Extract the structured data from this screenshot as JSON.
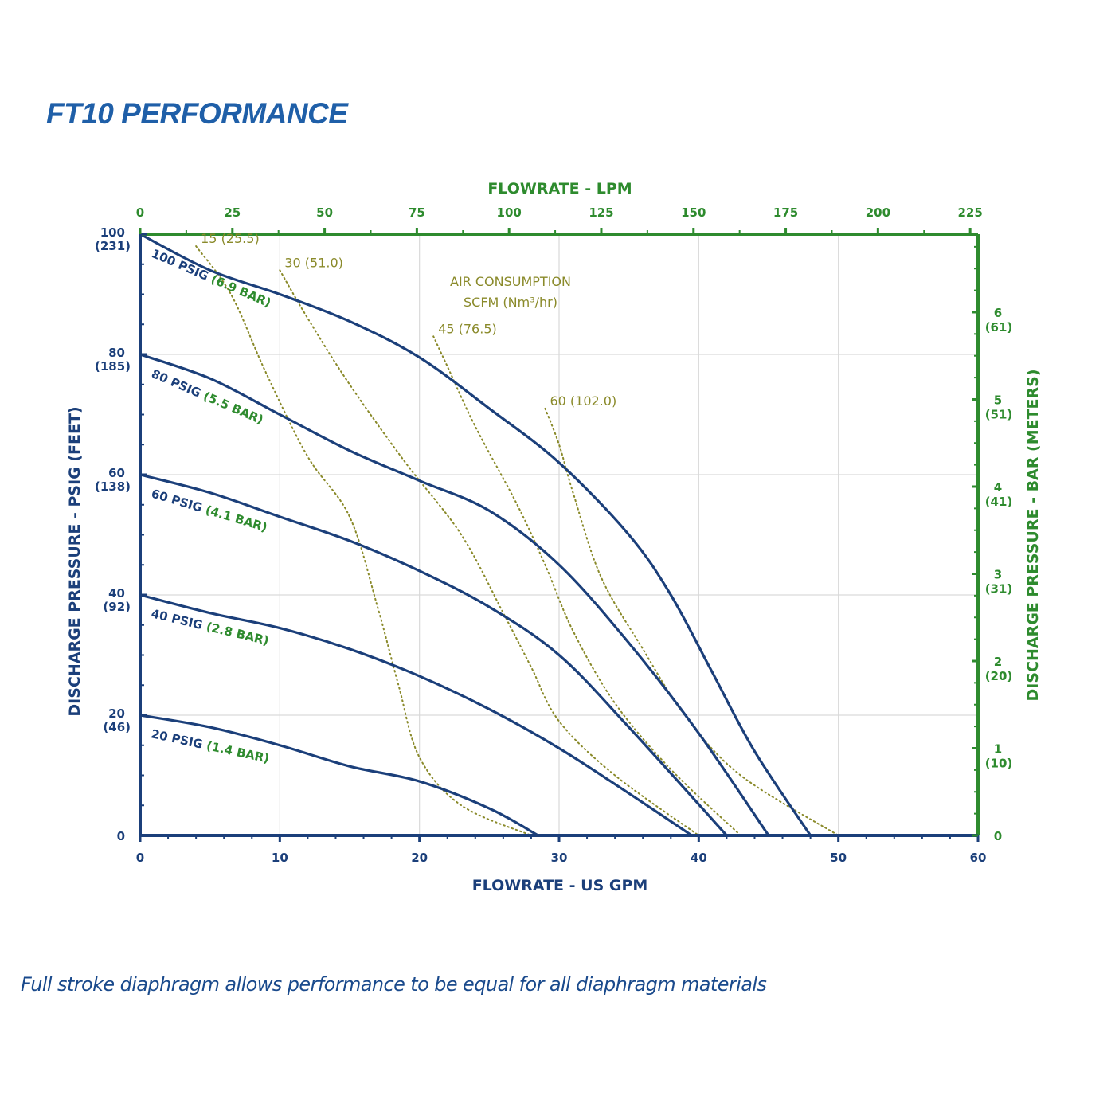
{
  "title": "FT10 PERFORMANCE",
  "footnote": "Full stroke diaphragm allows performance to be equal for all diaphragm materials",
  "colors": {
    "primary_axis": "#1b3f7a",
    "secondary_axis": "#2e8b2e",
    "curve": "#1b3f7a",
    "air_curve": "#8a8a2a",
    "grid": "#d9d9d9",
    "title": "#1f5fa8"
  },
  "chart_data": {
    "type": "line",
    "xlabel": "FLOWRATE - US GPM",
    "xlabel_top": "FLOWRATE - LPM",
    "ylabel": "DISCHARGE PRESSURE - PSIG (FEET)",
    "ylabel_right": "DISCHARGE PRESSURE - BAR (METERS)",
    "xlim": [
      0,
      60
    ],
    "ylim": [
      0,
      100
    ],
    "grid": true,
    "x_ticks": [
      "0",
      "10",
      "20",
      "30",
      "40",
      "50",
      "60"
    ],
    "x_tick_values": [
      0,
      10,
      20,
      30,
      40,
      50,
      60
    ],
    "x_top_ticks": [
      "0",
      "25",
      "50",
      "75",
      "100",
      "125",
      "150",
      "175",
      "200",
      "225"
    ],
    "x_top_tick_values": [
      0,
      25,
      50,
      75,
      100,
      125,
      150,
      175,
      200,
      225
    ],
    "y_ticks": [
      {
        "value": 0,
        "label": "0",
        "sub": ""
      },
      {
        "value": 20,
        "label": "20",
        "sub": "(46)"
      },
      {
        "value": 40,
        "label": "40",
        "sub": "(92)"
      },
      {
        "value": 60,
        "label": "60",
        "sub": "(138)"
      },
      {
        "value": 80,
        "label": "80",
        "sub": "(185)"
      },
      {
        "value": 100,
        "label": "100",
        "sub": "(231)"
      }
    ],
    "y_right_ticks": [
      {
        "value": 0,
        "label": "0",
        "sub": ""
      },
      {
        "value": 1,
        "label": "1",
        "sub": "(10)"
      },
      {
        "value": 2,
        "label": "2",
        "sub": "(20)"
      },
      {
        "value": 3,
        "label": "3",
        "sub": "(31)"
      },
      {
        "value": 4,
        "label": "4",
        "sub": "(41)"
      },
      {
        "value": 5,
        "label": "5",
        "sub": "(51)"
      },
      {
        "value": 6,
        "label": "6",
        "sub": "(61)"
      }
    ],
    "series": [
      {
        "name": "100 PSIG",
        "name_metric": "(6.9 BAR)",
        "x": [
          0,
          5,
          10,
          15,
          20,
          25,
          30,
          35,
          38,
          41,
          44,
          48
        ],
        "y": [
          100,
          94,
          90,
          85.5,
          79.5,
          71,
          62,
          50,
          40,
          27,
          14,
          0
        ]
      },
      {
        "name": "80 PSIG",
        "name_metric": "(5.5 BAR)",
        "x": [
          0,
          5,
          10,
          15,
          20,
          25,
          30,
          35,
          40,
          45
        ],
        "y": [
          80,
          76,
          70,
          64,
          59,
          54,
          45,
          32,
          17,
          0
        ]
      },
      {
        "name": "60 PSIG",
        "name_metric": "(4.1 BAR)",
        "x": [
          0,
          5,
          10,
          15,
          20,
          25,
          30,
          35,
          42
        ],
        "y": [
          60,
          57,
          53,
          49,
          44,
          38,
          30,
          18,
          0
        ]
      },
      {
        "name": "40 PSIG",
        "name_metric": "(2.8 BAR)",
        "x": [
          0,
          5,
          10,
          15,
          20,
          25,
          30,
          35,
          39.5
        ],
        "y": [
          40,
          37,
          34.5,
          31,
          26.5,
          21,
          14.5,
          7,
          0
        ]
      },
      {
        "name": "20 PSIG",
        "name_metric": "(1.4 BAR)",
        "x": [
          0,
          5,
          10,
          15,
          20,
          25,
          28.5
        ],
        "y": [
          20,
          18,
          15,
          11.5,
          9,
          4.5,
          0
        ]
      }
    ],
    "air_consumption": {
      "title_line1": "AIR CONSUMPTION",
      "title_line2": "SCFM (Nm³/hr)",
      "curves": [
        {
          "label": "15 (25.5)",
          "x": [
            4,
            6.5,
            9,
            12,
            15,
            17,
            18.5,
            20,
            23,
            28
          ],
          "y": [
            98,
            90,
            77,
            63,
            53,
            38,
            25,
            13,
            5,
            0
          ]
        },
        {
          "label": "30 (51.0)",
          "x": [
            10,
            12,
            15,
            19,
            23,
            26,
            28,
            30,
            34,
            40
          ],
          "y": [
            94,
            86,
            75,
            62,
            50,
            37,
            28,
            19,
            10,
            0
          ]
        },
        {
          "label": "45 (76.5)",
          "x": [
            21,
            22,
            24,
            27,
            29,
            31,
            34,
            38,
            43
          ],
          "y": [
            83,
            78,
            68,
            55,
            45,
            34,
            22,
            11,
            0
          ]
        },
        {
          "label": "60 (102.0)",
          "x": [
            29,
            30,
            31,
            33,
            36,
            39,
            43,
            50
          ],
          "y": [
            71,
            65,
            57,
            43,
            31,
            20,
            10,
            0
          ]
        }
      ]
    }
  }
}
